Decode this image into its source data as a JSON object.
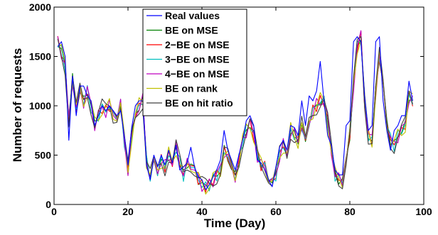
{
  "chart_data": {
    "type": "line",
    "xlabel": "Time (Day)",
    "ylabel": "Number of requests",
    "xlim": [
      0,
      100
    ],
    "ylim": [
      0,
      2000
    ],
    "xticks": [
      0,
      20,
      40,
      60,
      80,
      100
    ],
    "yticks": [
      0,
      500,
      1000,
      1500,
      2000
    ],
    "tick_labels_x": [
      "0",
      "20",
      "40",
      "60",
      "80",
      "100"
    ],
    "tick_labels_y": [
      "0",
      "500",
      "1000",
      "1500",
      "2000"
    ],
    "legend_position": "top-center",
    "grid": false,
    "series": [
      {
        "name": "Real values",
        "color": "#0000ff"
      },
      {
        "name": "BE on MSE",
        "color": "#008000"
      },
      {
        "name": "2−BE on MSE",
        "color": "#ff0000"
      },
      {
        "name": "3−BE on MSE",
        "color": "#00bfbf"
      },
      {
        "name": "4−BE on MSE",
        "color": "#bf00bf"
      },
      {
        "name": "BE on rank",
        "color": "#bfbf00"
      },
      {
        "name": "BE on hit ratio",
        "color": "#404040"
      }
    ],
    "x": [
      1,
      2,
      3,
      4,
      5,
      6,
      7,
      8,
      9,
      10,
      11,
      12,
      13,
      14,
      15,
      16,
      17,
      18,
      19,
      20,
      21,
      22,
      23,
      24,
      25,
      26,
      27,
      28,
      29,
      30,
      31,
      32,
      33,
      34,
      35,
      36,
      37,
      38,
      39,
      40,
      41,
      42,
      43,
      44,
      45,
      46,
      47,
      48,
      49,
      50,
      51,
      52,
      53,
      54,
      55,
      56,
      57,
      58,
      59,
      60,
      61,
      62,
      63,
      64,
      65,
      66,
      67,
      68,
      69,
      70,
      71,
      72,
      73,
      74,
      75,
      76,
      77,
      78,
      79,
      80,
      81,
      82,
      83,
      84,
      85,
      86,
      87,
      88,
      89,
      90,
      91,
      92,
      93,
      94,
      95,
      96,
      97
    ],
    "base_values": [
      1650,
      1550,
      1400,
      850,
      1280,
      950,
      1150,
      1050,
      1150,
      1000,
      820,
      900,
      980,
      950,
      1000,
      900,
      920,
      1000,
      650,
      350,
      700,
      900,
      1000,
      1050,
      450,
      300,
      400,
      350,
      450,
      380,
      500,
      420,
      580,
      420,
      300,
      400,
      420,
      350,
      250,
      200,
      180,
      200,
      250,
      300,
      350,
      550,
      480,
      350,
      300,
      450,
      650,
      750,
      820,
      700,
      500,
      400,
      380,
      300,
      200,
      300,
      500,
      600,
      500,
      750,
      700,
      650,
      820,
      600,
      850,
      950,
      1000,
      1050,
      1050,
      850,
      550,
      300,
      250,
      250,
      450,
      700,
      1200,
      1600,
      1700,
      1050,
      700,
      650,
      1150,
      1500,
      1200,
      850,
      650,
      600,
      700,
      750,
      800,
      1100,
      1050
    ],
    "real_values": [
      1600,
      1650,
      1500,
      650,
      1300,
      900,
      1200,
      1200,
      1100,
      1050,
      800,
      900,
      1000,
      950,
      1000,
      950,
      900,
      950,
      700,
      400,
      780,
      1000,
      1050,
      1050,
      400,
      250,
      500,
      380,
      500,
      400,
      550,
      420,
      600,
      350,
      380,
      420,
      580,
      380,
      280,
      250,
      150,
      200,
      280,
      350,
      450,
      750,
      550,
      450,
      350,
      500,
      650,
      850,
      900,
      800,
      450,
      420,
      350,
      250,
      180,
      380,
      580,
      650,
      550,
      800,
      780,
      700,
      1050,
      800,
      1100,
      1050,
      1150,
      1450,
      1050,
      700,
      600,
      350,
      300,
      300,
      800,
      850,
      1650,
      1700,
      1650,
      1100,
      750,
      800,
      1650,
      1700,
      1050,
      750,
      550,
      750,
      800,
      900,
      900,
      1250,
      1050
    ]
  }
}
